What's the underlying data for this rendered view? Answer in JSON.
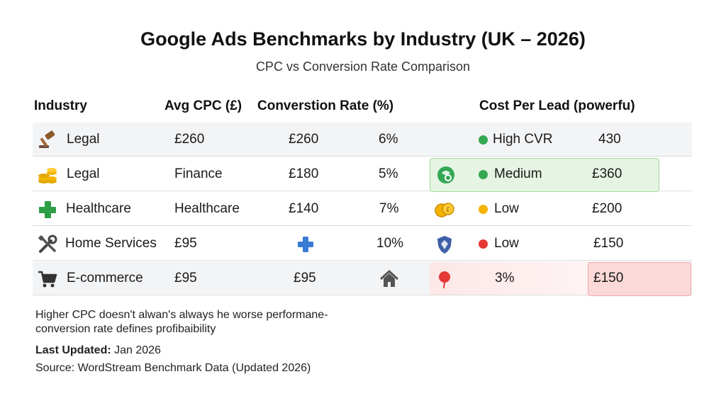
{
  "colors": {
    "row_alt": "#f3f4f6",
    "green": "#34a853",
    "yellow": "#f4b400",
    "red": "#e53935",
    "highlight_green": "#e6f4e3",
    "highlight_red": "#fde7e7"
  },
  "chart_data": {
    "type": "table",
    "title": "Google Ads Benchmarks by Industry (UK – 2026)",
    "subtitle": "CPC vs Conversion Rate Comparison",
    "columns": [
      "Industry",
      "Avg CPC (£)",
      "Converstion Rate (%)",
      "Cost Per Lead (powerfu)"
    ],
    "rows": [
      {
        "icon": "gavel-icon",
        "industry": "Legal",
        "cpc": "£260",
        "cpc2": "£260",
        "rate": "6%",
        "right_icon": "",
        "status": "High CVR",
        "status_color": "green",
        "cost": "430"
      },
      {
        "icon": "coins-icon",
        "industry": "Legal",
        "cpc": "Finance",
        "cpc2": "£180",
        "rate": "5%",
        "right_icon": "globe-leaf-icon",
        "status": "Medium",
        "status_color": "green",
        "cost": "£360",
        "highlight": "green"
      },
      {
        "icon": "medical-cross-icon",
        "industry": "Healthcare",
        "cpc": "Healthcare",
        "cpc2": "£140",
        "rate": "7%",
        "right_icon": "gold-coins-icon",
        "status": "Low",
        "status_color": "yellow",
        "cost": "£200"
      },
      {
        "icon": "tools-icon",
        "industry": "Home Services",
        "cpc": "£95",
        "cpc2": "plus-icon",
        "rate": "10%",
        "right_icon": "shield-icon",
        "status": "Low",
        "status_color": "red",
        "cost": "£150"
      },
      {
        "icon": "cart-icon",
        "industry": "E-commerce",
        "cpc": "£95",
        "cpc2": "£95",
        "rate": "house-icon",
        "right_icon": "red-pin-icon",
        "status": "3%",
        "status_color": "",
        "cost": "£150",
        "highlight": "red"
      }
    ]
  },
  "footer": {
    "note_line1": "Higher CPC doesn't alwan's always he worse performane-",
    "note_line2": "conversion rate defines profibaibility",
    "updated_label": "Last Updated:",
    "updated_value": " Jan 2026",
    "source": "Source: WordStream Benchmark Data (Updated 2026)"
  }
}
